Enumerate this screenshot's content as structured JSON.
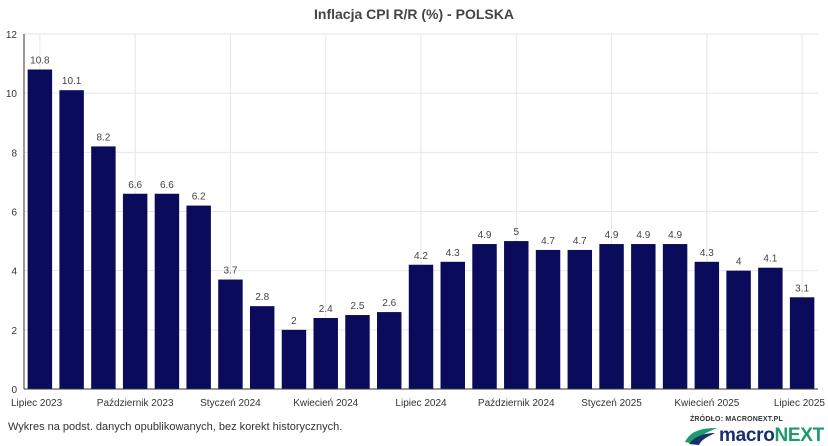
{
  "title": "Inflacja CPI R/R (%) - POLSKA",
  "footnote": "Wykres na podst. danych opublikowanych, bez korekt historycznych.",
  "source": "ŹRÓDŁO: MACRONEXT.PL",
  "logo": {
    "part1": "macro",
    "part2": "NEXT"
  },
  "colors": {
    "bar": "#0b0b5c",
    "grid": "#e6e6e6",
    "axis": "#333333"
  },
  "chart_data": {
    "type": "bar",
    "title": "Inflacja CPI R/R (%) - POLSKA",
    "xlabel": "",
    "ylabel": "",
    "ylim": [
      0,
      12
    ],
    "yticks": [
      0,
      2,
      4,
      6,
      8,
      10,
      12
    ],
    "grid": true,
    "categories": [
      "2023-07",
      "2023-08",
      "2023-09",
      "2023-10",
      "2023-11",
      "2023-12",
      "2024-01",
      "2024-02",
      "2024-03",
      "2024-04",
      "2024-05",
      "2024-06",
      "2024-07",
      "2024-08",
      "2024-09",
      "2024-10",
      "2024-11",
      "2024-12",
      "2025-01",
      "2025-02",
      "2025-03",
      "2025-04",
      "2025-05",
      "2025-06",
      "2025-07"
    ],
    "values": [
      10.8,
      10.1,
      8.2,
      6.6,
      6.6,
      6.2,
      3.7,
      2.8,
      2,
      2.4,
      2.5,
      2.6,
      4.2,
      4.3,
      4.9,
      5,
      4.7,
      4.7,
      4.9,
      4.9,
      4.9,
      4.3,
      4,
      4.1,
      3.1
    ],
    "data_labels": [
      "10.8",
      "10.1",
      "8.2",
      "6.6",
      "6.6",
      "6.2",
      "3.7",
      "2.8",
      "2",
      "2.4",
      "2.5",
      "2.6",
      "4.2",
      "4.3",
      "4.9",
      "5",
      "4.7",
      "4.7",
      "4.9",
      "4.9",
      "4.9",
      "4.3",
      "4",
      "4.1",
      "3.1"
    ],
    "xtick_labels": [
      {
        "index": 0,
        "label": "Lipiec 2023"
      },
      {
        "index": 3,
        "label": "Październik 2023"
      },
      {
        "index": 6,
        "label": "Styczeń 2024"
      },
      {
        "index": 9,
        "label": "Kwiecień 2024"
      },
      {
        "index": 12,
        "label": "Lipiec 2024"
      },
      {
        "index": 15,
        "label": "Październik 2024"
      },
      {
        "index": 18,
        "label": "Styczeń 2025"
      },
      {
        "index": 21,
        "label": "Kwiecień 2025"
      },
      {
        "index": 24,
        "label": "Lipiec 2025"
      }
    ]
  }
}
